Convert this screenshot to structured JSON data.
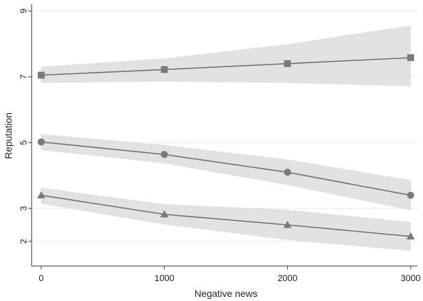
{
  "chart_data": {
    "type": "line",
    "xlabel": "Negative news",
    "ylabel": "Reputation",
    "x": [
      0,
      1000,
      2000,
      3000
    ],
    "xlim": [
      0,
      3000
    ],
    "ylim": [
      1.2,
      9.2
    ],
    "xticks": [
      "0",
      "1000",
      "2000",
      "3000"
    ],
    "yticks": [
      2,
      3,
      5,
      7,
      9
    ],
    "ytick_labels": [
      "2",
      "3",
      "5",
      "7",
      "9"
    ],
    "grid": true,
    "series": [
      {
        "marker": "square",
        "values": [
          7.05,
          7.22,
          7.4,
          7.58
        ],
        "ci_lower": [
          6.82,
          6.86,
          6.82,
          6.72
        ],
        "ci_upper": [
          7.3,
          7.55,
          7.98,
          8.55
        ]
      },
      {
        "marker": "circle",
        "values": [
          5.02,
          4.64,
          4.1,
          3.4
        ],
        "ci_lower": [
          4.78,
          4.38,
          3.72,
          2.95
        ],
        "ci_upper": [
          5.25,
          4.92,
          4.48,
          3.85
        ]
      },
      {
        "marker": "triangle",
        "values": [
          3.4,
          2.82,
          2.5,
          2.15
        ],
        "ci_lower": [
          3.15,
          2.52,
          2.05,
          1.72
        ],
        "ci_upper": [
          3.62,
          3.12,
          2.95,
          2.58
        ]
      }
    ],
    "colors": {
      "line": "#707070",
      "marker": "#7a7a7a",
      "band": "#e2e2e2",
      "grid": "#dfe8ee",
      "axis": "#333333"
    }
  }
}
